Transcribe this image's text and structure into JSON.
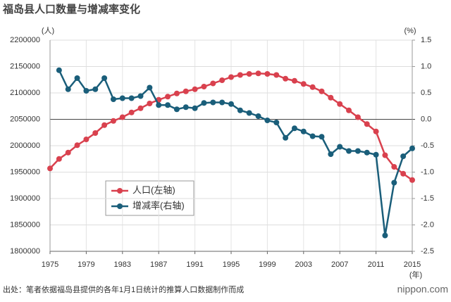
{
  "chart_data": {
    "type": "line",
    "title": "福岛县人口数量与增减率变化",
    "y_label": "(人)",
    "y2_label": "(%)",
    "x_label": "(年)",
    "source": "出处：笔者依据福岛县提供的各年1月1日统计的推算人口数据制作而成",
    "logo": "nippon.com",
    "x": [
      1975,
      1976,
      1977,
      1978,
      1979,
      1980,
      1981,
      1982,
      1983,
      1984,
      1985,
      1986,
      1987,
      1988,
      1989,
      1990,
      1991,
      1992,
      1993,
      1994,
      1995,
      1996,
      1997,
      1998,
      1999,
      2000,
      2001,
      2002,
      2003,
      2004,
      2005,
      2006,
      2007,
      2008,
      2009,
      2010,
      2011,
      2012,
      2013,
      2014,
      2015
    ],
    "xlim": [
      1975,
      2015
    ],
    "xticks": [
      1975,
      1979,
      1983,
      1987,
      1991,
      1995,
      1999,
      2003,
      2007,
      2011,
      2015
    ],
    "ylim": [
      1800000,
      2200000
    ],
    "yticks": [
      1800000,
      1850000,
      1900000,
      1950000,
      2000000,
      2050000,
      2100000,
      2150000,
      2200000
    ],
    "y2lim": [
      -2.5,
      1.5
    ],
    "y2ticks": [
      -2.5,
      {
        "value": -2.0,
        "label": "-2.0"
      },
      -1.5,
      {
        "value": -1.0,
        "label": "-1.0"
      },
      -0.5,
      {
        "value": 0.0,
        "label": "0.0"
      },
      0.5,
      {
        "value": 1.0,
        "label": "1.0"
      },
      1.5
    ],
    "grid": true,
    "series": [
      {
        "name": "人口(左轴)",
        "color": "#d9414e",
        "axis": "y",
        "values": [
          1957000,
          1975000,
          1987000,
          2001000,
          2012000,
          2024000,
          2039000,
          2047000,
          2054000,
          2063000,
          2071000,
          2080000,
          2087000,
          2093000,
          2099000,
          2103000,
          2107000,
          2112000,
          2118000,
          2124000,
          2130000,
          2134000,
          2136000,
          2137000,
          2136000,
          2134000,
          2127000,
          2123000,
          2117000,
          2111000,
          2103000,
          2091000,
          2079000,
          2067000,
          2054000,
          2041000,
          2027000,
          1982000,
          1960000,
          1947000,
          1935000
        ]
      },
      {
        "name": "增减率(右轴)",
        "color": "#1a5e7a",
        "axis": "y2",
        "values": [
          null,
          0.93,
          0.57,
          0.78,
          0.54,
          0.57,
          0.78,
          0.38,
          0.4,
          0.4,
          0.44,
          0.6,
          0.27,
          0.27,
          0.19,
          0.23,
          0.21,
          0.31,
          0.32,
          0.32,
          0.29,
          0.17,
          0.12,
          0.06,
          -0.02,
          -0.06,
          -0.35,
          -0.17,
          -0.23,
          -0.32,
          -0.33,
          -0.66,
          -0.52,
          -0.6,
          -0.6,
          -0.63,
          -0.67,
          -2.2,
          -1.2,
          -0.7,
          -0.55
        ]
      }
    ]
  }
}
